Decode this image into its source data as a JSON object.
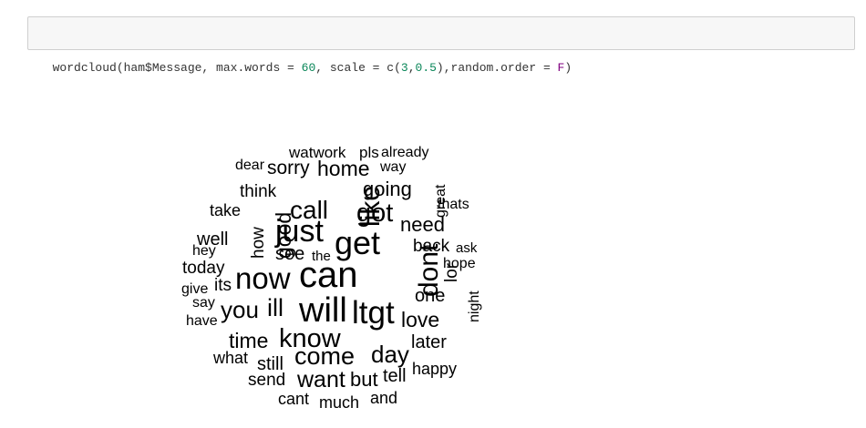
{
  "code_cell": {
    "parts": [
      {
        "text": "wordcloud(ham$Message, max.words = ",
        "kind": "plain"
      },
      {
        "text": "60",
        "kind": "num"
      },
      {
        "text": ", scale = c(",
        "kind": "plain"
      },
      {
        "text": "3",
        "kind": "num"
      },
      {
        "text": ",",
        "kind": "plain"
      },
      {
        "text": "0.5",
        "kind": "num"
      },
      {
        "text": "),random.order = ",
        "kind": "plain"
      },
      {
        "text": "F",
        "kind": "bool"
      },
      {
        "text": ")",
        "kind": "plain"
      }
    ]
  },
  "wordcloud": {
    "words": [
      {
        "text": "watwork"
      },
      {
        "text": "pls"
      },
      {
        "text": "already"
      },
      {
        "text": "dear"
      },
      {
        "text": "sorry"
      },
      {
        "text": "home"
      },
      {
        "text": "way"
      },
      {
        "text": "think"
      },
      {
        "text": "going"
      },
      {
        "text": "great"
      },
      {
        "text": "thats"
      },
      {
        "text": "take"
      },
      {
        "text": "call"
      },
      {
        "text": "like"
      },
      {
        "text": "got"
      },
      {
        "text": "how"
      },
      {
        "text": "good"
      },
      {
        "text": "just"
      },
      {
        "text": "need"
      },
      {
        "text": "well"
      },
      {
        "text": "get"
      },
      {
        "text": "hey"
      },
      {
        "text": "see"
      },
      {
        "text": "the"
      },
      {
        "text": "back"
      },
      {
        "text": "ask"
      },
      {
        "text": "today"
      },
      {
        "text": "dont"
      },
      {
        "text": "lor"
      },
      {
        "text": "hope"
      },
      {
        "text": "now"
      },
      {
        "text": "can"
      },
      {
        "text": "give"
      },
      {
        "text": "its"
      },
      {
        "text": "one"
      },
      {
        "text": "night"
      },
      {
        "text": "say"
      },
      {
        "text": "you"
      },
      {
        "text": "ill"
      },
      {
        "text": "will"
      },
      {
        "text": "ltgt"
      },
      {
        "text": "have"
      },
      {
        "text": "love"
      },
      {
        "text": "time"
      },
      {
        "text": "know"
      },
      {
        "text": "later"
      },
      {
        "text": "what"
      },
      {
        "text": "still"
      },
      {
        "text": "come"
      },
      {
        "text": "day"
      },
      {
        "text": "send"
      },
      {
        "text": "want"
      },
      {
        "text": "but"
      },
      {
        "text": "tell"
      },
      {
        "text": "happy"
      },
      {
        "text": "cant"
      },
      {
        "text": "much"
      },
      {
        "text": "and"
      }
    ]
  }
}
